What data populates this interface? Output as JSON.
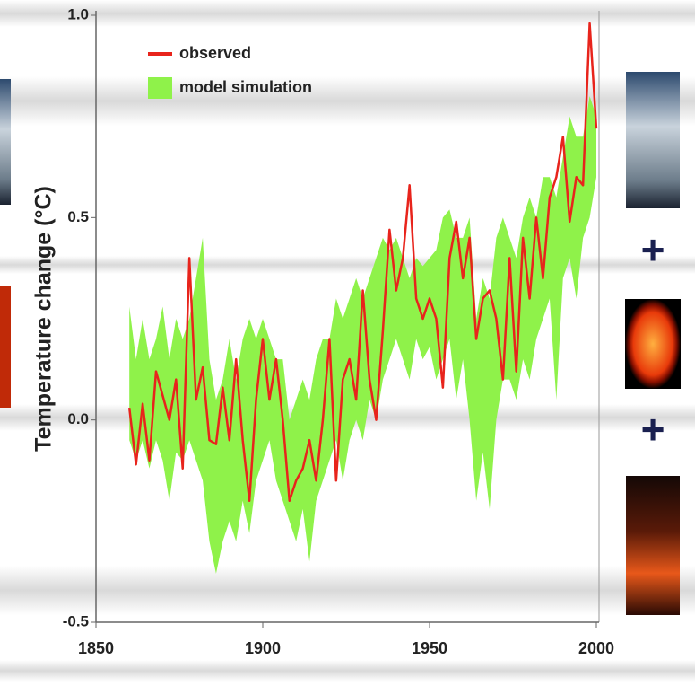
{
  "chart_data": {
    "type": "line-band",
    "y_label": "Temperature change (°C)",
    "x": [
      1860,
      1862,
      1864,
      1866,
      1868,
      1870,
      1872,
      1874,
      1876,
      1878,
      1880,
      1882,
      1884,
      1886,
      1888,
      1890,
      1892,
      1894,
      1896,
      1898,
      1900,
      1902,
      1904,
      1906,
      1908,
      1910,
      1912,
      1914,
      1916,
      1918,
      1920,
      1922,
      1924,
      1926,
      1928,
      1930,
      1932,
      1934,
      1936,
      1938,
      1940,
      1942,
      1944,
      1946,
      1948,
      1950,
      1952,
      1954,
      1956,
      1958,
      1960,
      1962,
      1964,
      1966,
      1968,
      1970,
      1972,
      1974,
      1976,
      1978,
      1980,
      1982,
      1984,
      1986,
      1988,
      1990,
      1992,
      1994,
      1996,
      1998,
      2000
    ],
    "series": [
      {
        "name": "observed",
        "color": "#e8241c",
        "values": [
          0.03,
          -0.11,
          0.04,
          -0.1,
          0.12,
          0.06,
          0.0,
          0.1,
          -0.12,
          0.4,
          0.05,
          0.13,
          -0.05,
          -0.06,
          0.08,
          -0.05,
          0.15,
          -0.05,
          -0.2,
          0.05,
          0.2,
          0.05,
          0.15,
          0.0,
          -0.2,
          -0.15,
          -0.12,
          -0.05,
          -0.15,
          0.0,
          0.2,
          -0.15,
          0.1,
          0.15,
          0.05,
          0.32,
          0.1,
          0.0,
          0.22,
          0.47,
          0.32,
          0.4,
          0.58,
          0.3,
          0.25,
          0.3,
          0.25,
          0.08,
          0.4,
          0.49,
          0.35,
          0.45,
          0.2,
          0.3,
          0.32,
          0.25,
          0.1,
          0.4,
          0.12,
          0.45,
          0.3,
          0.5,
          0.35,
          0.55,
          0.6,
          0.7,
          0.49,
          0.6,
          0.58,
          0.98,
          0.72
        ]
      },
      {
        "name": "model simulation",
        "color": "#8ff24a",
        "lower": [
          -0.05,
          -0.1,
          -0.05,
          -0.12,
          -0.05,
          -0.1,
          -0.2,
          -0.08,
          -0.1,
          -0.05,
          -0.1,
          -0.15,
          -0.3,
          -0.38,
          -0.3,
          -0.25,
          -0.3,
          -0.2,
          -0.28,
          -0.15,
          -0.1,
          -0.05,
          -0.15,
          -0.2,
          -0.25,
          -0.3,
          -0.22,
          -0.35,
          -0.2,
          -0.15,
          -0.1,
          -0.05,
          -0.15,
          -0.05,
          0.0,
          -0.05,
          0.05,
          0.0,
          0.1,
          0.15,
          0.2,
          0.15,
          0.1,
          0.2,
          0.15,
          0.18,
          0.1,
          0.15,
          0.2,
          0.05,
          0.15,
          0.0,
          -0.2,
          -0.08,
          -0.22,
          0.0,
          0.1,
          0.1,
          0.05,
          0.15,
          0.1,
          0.2,
          0.25,
          0.3,
          0.05,
          0.35,
          0.4,
          0.3,
          0.45,
          0.5,
          0.6
        ],
        "upper": [
          0.28,
          0.15,
          0.25,
          0.15,
          0.2,
          0.28,
          0.15,
          0.25,
          0.2,
          0.25,
          0.35,
          0.45,
          0.15,
          0.05,
          0.1,
          0.2,
          0.1,
          0.2,
          0.25,
          0.2,
          0.25,
          0.2,
          0.15,
          0.15,
          0.0,
          0.05,
          0.1,
          0.05,
          0.15,
          0.2,
          0.2,
          0.3,
          0.25,
          0.3,
          0.35,
          0.3,
          0.35,
          0.4,
          0.45,
          0.42,
          0.45,
          0.4,
          0.35,
          0.4,
          0.38,
          0.4,
          0.42,
          0.5,
          0.52,
          0.45,
          0.45,
          0.5,
          0.25,
          0.35,
          0.3,
          0.45,
          0.5,
          0.45,
          0.4,
          0.5,
          0.55,
          0.5,
          0.6,
          0.6,
          0.55,
          0.65,
          0.75,
          0.7,
          0.7,
          0.8,
          0.75
        ]
      }
    ],
    "xlim": [
      1850,
      2000
    ],
    "ylim": [
      -0.5,
      1.0
    ],
    "xticks": [
      1850,
      1900,
      1950,
      2000
    ],
    "yticks": [
      {
        "value": 1,
        "label": "1.0"
      },
      0.5,
      {
        "value": 0,
        "label": "0.0"
      },
      -0.5
    ]
  }
}
